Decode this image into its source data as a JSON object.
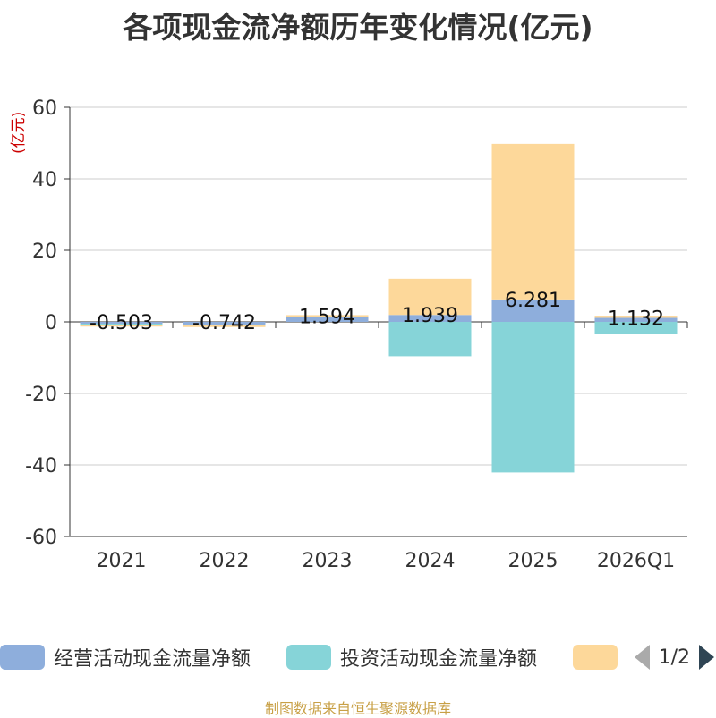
{
  "title": "各项现金流净额历年变化情况(亿元)",
  "unit_label": "(亿元)",
  "source_text": "制图数据来自恒生聚源数据库",
  "legend": {
    "items": [
      {
        "label": "经营活动现金流量净额",
        "color": "#8eaedc"
      },
      {
        "label": "投资活动现金流量净额",
        "color": "#86d4d8"
      },
      {
        "label": "",
        "color": "#fdd89a"
      }
    ],
    "page_text": "1/2"
  },
  "chart_data": {
    "type": "bar",
    "stacked": true,
    "title": "各项现金流净额历年变化情况(亿元)",
    "ylabel": "(亿元)",
    "ylim": [
      -60,
      60
    ],
    "yticks": [
      60,
      40,
      20,
      0,
      -20,
      -40,
      -60
    ],
    "grid": true,
    "categories": [
      "2021",
      "2022",
      "2023",
      "2024",
      "2025",
      "2026Q1"
    ],
    "series": [
      {
        "name": "经营活动现金流量净额",
        "color": "#8eaedc",
        "values": [
          -0.503,
          -0.742,
          1.594,
          1.939,
          6.281,
          1.132
        ]
      },
      {
        "name": "投资活动现金流量净额",
        "color": "#86d4d8",
        "values": [
          -0.3,
          -0.2,
          0,
          -9.6,
          -42.1,
          -3.3
        ]
      },
      {
        "name": "",
        "color": "#fdd89a",
        "values": [
          -0.4,
          -0.3,
          0.3,
          10.1,
          43.5,
          0.6
        ]
      }
    ],
    "data_labels": [
      "-0.503",
      "-0.742",
      "1.594",
      "1.939",
      "6.281",
      "1.132"
    ]
  }
}
